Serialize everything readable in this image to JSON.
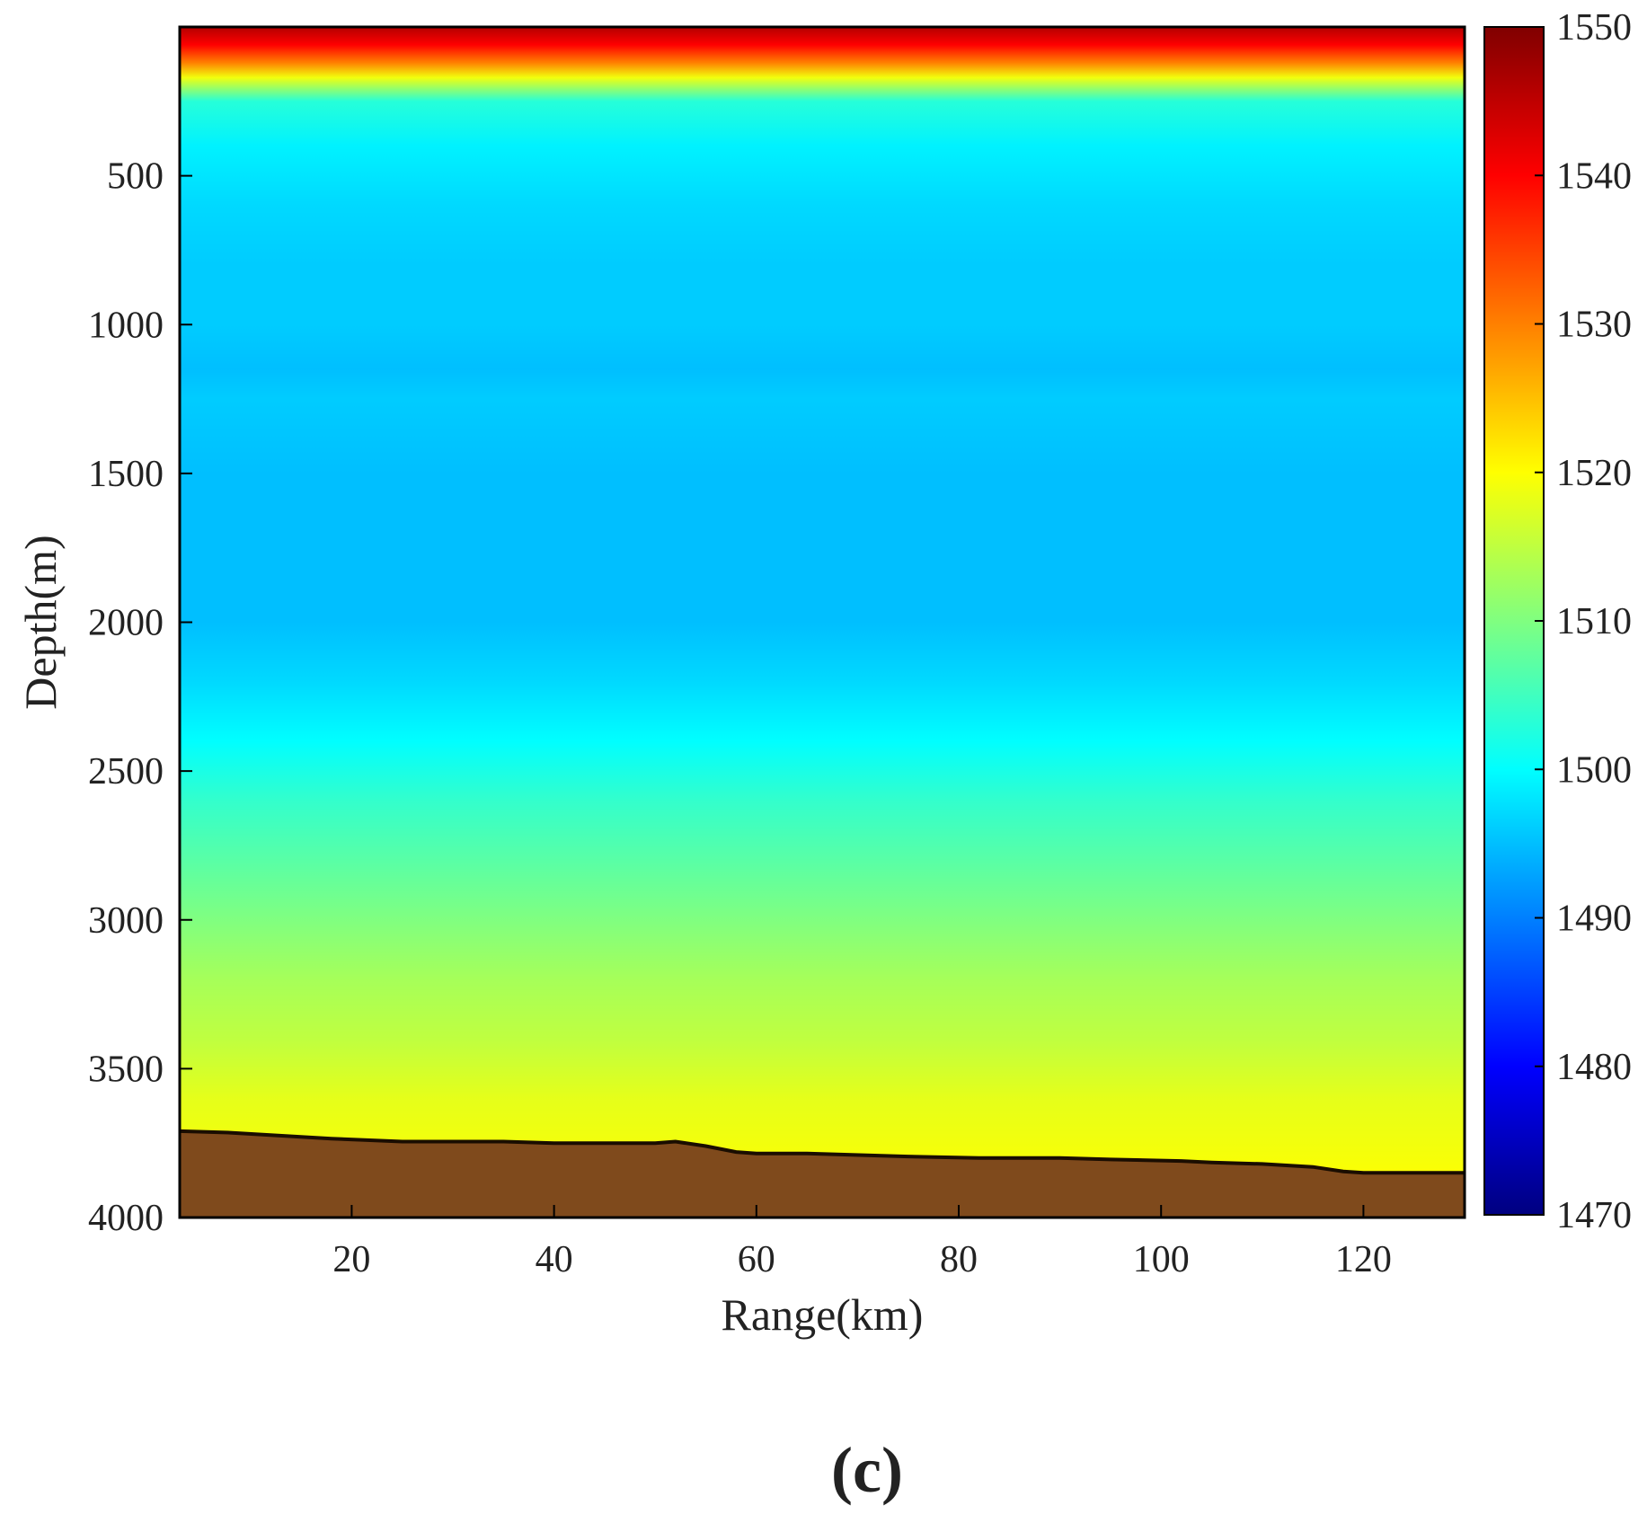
{
  "chart_data": {
    "type": "heatmap",
    "title": "",
    "xlabel": "Range(km)",
    "ylabel": "Depth(m)",
    "panel_label": "(c)",
    "xlim": [
      3,
      130
    ],
    "ylim": [
      0,
      4000
    ],
    "y_inverted": true,
    "x_ticks": [
      20,
      40,
      60,
      80,
      100,
      120
    ],
    "y_ticks": [
      500,
      1000,
      1500,
      2000,
      2500,
      3000,
      3500,
      4000
    ],
    "colorbar": {
      "colormap": "jet",
      "range": [
        1470,
        1550
      ],
      "ticks": [
        1470,
        1480,
        1490,
        1500,
        1510,
        1520,
        1530,
        1540,
        1550
      ]
    },
    "sound_speed_profile": {
      "depth": [
        0,
        60,
        120,
        170,
        250,
        400,
        600,
        800,
        1000,
        1150,
        1250,
        1500,
        1800,
        2000,
        2200,
        2400,
        2600,
        2800,
        3000,
        3200,
        3400,
        3600,
        3900
      ],
      "speed": [
        1546,
        1540,
        1530,
        1519,
        1503,
        1499,
        1497,
        1496,
        1496,
        1495,
        1496,
        1495,
        1495,
        1495,
        1497,
        1500,
        1504,
        1507,
        1510,
        1513,
        1515,
        1518,
        1520
      ]
    },
    "seabed": {
      "color": "#7f4a1c",
      "range": [
        3,
        8,
        18,
        25,
        35,
        40,
        50,
        52,
        55,
        58,
        60,
        65,
        75,
        82,
        90,
        95,
        102,
        105,
        110,
        115,
        118,
        120,
        130
      ],
      "depth": [
        3710,
        3715,
        3735,
        3745,
        3745,
        3750,
        3750,
        3745,
        3760,
        3780,
        3785,
        3785,
        3795,
        3800,
        3800,
        3805,
        3810,
        3815,
        3820,
        3830,
        3845,
        3850,
        3850
      ]
    }
  }
}
